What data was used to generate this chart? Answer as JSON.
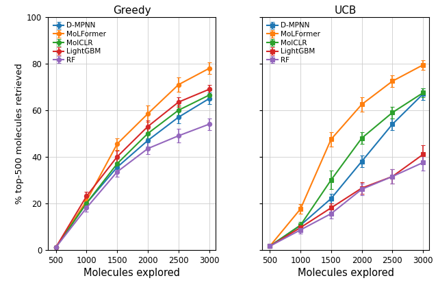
{
  "x": [
    500,
    1000,
    1500,
    2000,
    2500,
    3000
  ],
  "greedy": {
    "D-MPNN": {
      "y": [
        1.0,
        20.0,
        35.5,
        47.0,
        57.0,
        65.0
      ],
      "yerr": [
        0.5,
        1.5,
        2.0,
        2.5,
        2.5,
        2.5
      ]
    },
    "MoLFormer": {
      "y": [
        1.0,
        21.0,
        45.5,
        58.5,
        71.0,
        78.0
      ],
      "yerr": [
        0.5,
        1.5,
        2.5,
        3.5,
        3.0,
        2.5
      ]
    },
    "MolCLR": {
      "y": [
        1.0,
        20.0,
        37.0,
        50.0,
        60.0,
        66.5
      ],
      "yerr": [
        0.5,
        1.5,
        2.0,
        2.0,
        2.0,
        2.0
      ]
    },
    "LightGBM": {
      "y": [
        1.0,
        23.0,
        40.0,
        53.0,
        63.5,
        69.0
      ],
      "yerr": [
        0.5,
        2.0,
        2.5,
        2.5,
        2.0,
        2.0
      ]
    },
    "RF": {
      "y": [
        1.0,
        18.0,
        33.5,
        43.5,
        49.0,
        54.0
      ],
      "yerr": [
        0.3,
        1.5,
        2.0,
        2.5,
        3.0,
        2.5
      ]
    }
  },
  "ucb": {
    "D-MPNN": {
      "y": [
        1.5,
        10.5,
        22.0,
        38.0,
        54.0,
        67.0
      ],
      "yerr": [
        0.5,
        1.0,
        2.0,
        2.5,
        2.5,
        2.5
      ]
    },
    "MoLFormer": {
      "y": [
        1.5,
        17.5,
        47.5,
        62.5,
        72.5,
        79.5
      ],
      "yerr": [
        0.5,
        2.0,
        3.0,
        3.0,
        2.5,
        2.0
      ]
    },
    "MolCLR": {
      "y": [
        1.5,
        10.5,
        30.0,
        48.0,
        59.0,
        67.5
      ],
      "yerr": [
        0.5,
        1.5,
        4.0,
        2.5,
        2.5,
        2.0
      ]
    },
    "LightGBM": {
      "y": [
        1.5,
        9.5,
        18.0,
        26.5,
        31.5,
        41.0
      ],
      "yerr": [
        0.3,
        1.5,
        2.0,
        2.5,
        3.0,
        4.0
      ]
    },
    "RF": {
      "y": [
        1.5,
        8.5,
        15.5,
        26.0,
        31.5,
        37.5
      ],
      "yerr": [
        0.3,
        1.5,
        2.0,
        2.5,
        3.0,
        3.5
      ]
    }
  },
  "colors": {
    "D-MPNN": "#1f77b4",
    "MoLFormer": "#ff7f0e",
    "MolCLR": "#2ca02c",
    "LightGBM": "#d62728",
    "RF": "#9467bd"
  },
  "ylim": [
    0,
    100
  ],
  "ylabel": "% top-500 molecules retrieved",
  "xlabel": "Molecules explored",
  "title_greedy": "Greedy",
  "title_ucb": "UCB",
  "model_order": [
    "D-MPNN",
    "MoLFormer",
    "MolCLR",
    "LightGBM",
    "RF"
  ]
}
